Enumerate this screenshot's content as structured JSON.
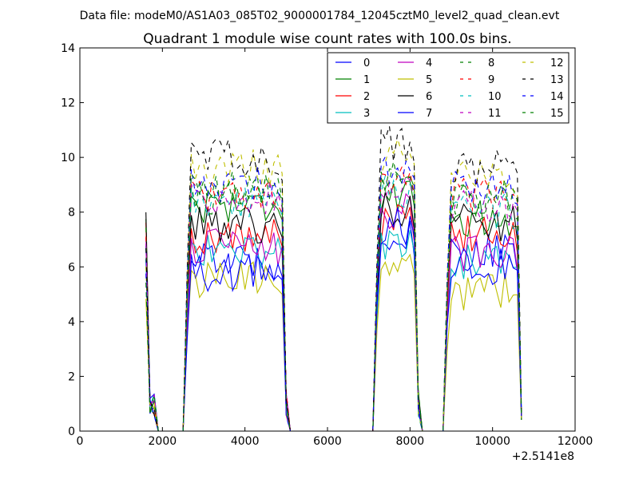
{
  "chart_data": {
    "type": "line",
    "supertitle": "Data file: modeM0/AS1A03_085T02_9000001784_12045cztM0_level2_quad_clean.evt",
    "title": "Quadrant 1 module wise count rates with 100.0s bins.",
    "xlabel": "",
    "ylabel": "",
    "x_offset_label": "+2.5141e8",
    "xlim": [
      0,
      12000
    ],
    "ylim": [
      0,
      14
    ],
    "xticks": [
      0,
      2000,
      4000,
      6000,
      8000,
      10000,
      12000
    ],
    "xtick_labels": [
      "0",
      "2000",
      "4000",
      "6000",
      "8000",
      "10000",
      "12000"
    ],
    "yticks": [
      0,
      2,
      4,
      6,
      8,
      10,
      12,
      14
    ],
    "ytick_labels": [
      "0",
      "2",
      "4",
      "6",
      "8",
      "10",
      "12",
      "14"
    ],
    "grid": false,
    "legend_position": "top-right",
    "segments": [
      {
        "start": 1600,
        "end": 1700
      },
      {
        "start": 2600,
        "end": 4900
      },
      {
        "start": 7200,
        "end": 8100
      },
      {
        "start": 8900,
        "end": 10600
      }
    ],
    "series": [
      {
        "name": "0",
        "color": "#0000ff",
        "dash": "solid",
        "levels": [
          6.5,
          6.2,
          7.0,
          6.5
        ]
      },
      {
        "name": "1",
        "color": "#008000",
        "dash": "solid",
        "levels": [
          7.8,
          8.3,
          8.5,
          7.8
        ]
      },
      {
        "name": "2",
        "color": "#ff0000",
        "dash": "solid",
        "levels": [
          7.5,
          7.1,
          7.6,
          7.2
        ]
      },
      {
        "name": "3",
        "color": "#00bfbf",
        "dash": "solid",
        "levels": [
          6.0,
          6.6,
          6.8,
          6.2
        ]
      },
      {
        "name": "4",
        "color": "#bf00bf",
        "dash": "solid",
        "levels": [
          7.2,
          6.7,
          8.0,
          6.5
        ]
      },
      {
        "name": "5",
        "color": "#bfbf00",
        "dash": "solid",
        "levels": [
          4.8,
          5.5,
          6.0,
          5.1
        ]
      },
      {
        "name": "6",
        "color": "#000000",
        "dash": "solid",
        "levels": [
          7.8,
          7.5,
          8.2,
          7.6
        ]
      },
      {
        "name": "7",
        "color": "#0000ff",
        "dash": "solid",
        "levels": [
          7.0,
          5.8,
          7.5,
          6.0
        ]
      },
      {
        "name": "8",
        "color": "#008000",
        "dash": "dashed",
        "levels": [
          7.5,
          8.6,
          9.0,
          8.4
        ]
      },
      {
        "name": "9",
        "color": "#ff0000",
        "dash": "dashed",
        "levels": [
          7.0,
          8.7,
          9.2,
          8.6
        ]
      },
      {
        "name": "10",
        "color": "#00bfbf",
        "dash": "dashed",
        "levels": [
          6.5,
          8.4,
          8.8,
          8.0
        ]
      },
      {
        "name": "11",
        "color": "#bf00bf",
        "dash": "dashed",
        "levels": [
          7.0,
          8.5,
          9.0,
          8.2
        ]
      },
      {
        "name": "12",
        "color": "#bfbf00",
        "dash": "dashed",
        "levels": [
          6.0,
          9.6,
          10.0,
          9.3
        ]
      },
      {
        "name": "13",
        "color": "#000000",
        "dash": "dashed",
        "levels": [
          6.5,
          10.0,
          10.5,
          9.6
        ]
      },
      {
        "name": "14",
        "color": "#0000ff",
        "dash": "dashed",
        "levels": [
          6.0,
          9.0,
          9.5,
          8.8
        ]
      },
      {
        "name": "15",
        "color": "#008000",
        "dash": "dashed",
        "levels": [
          5.5,
          8.8,
          9.3,
          8.5
        ]
      }
    ]
  }
}
